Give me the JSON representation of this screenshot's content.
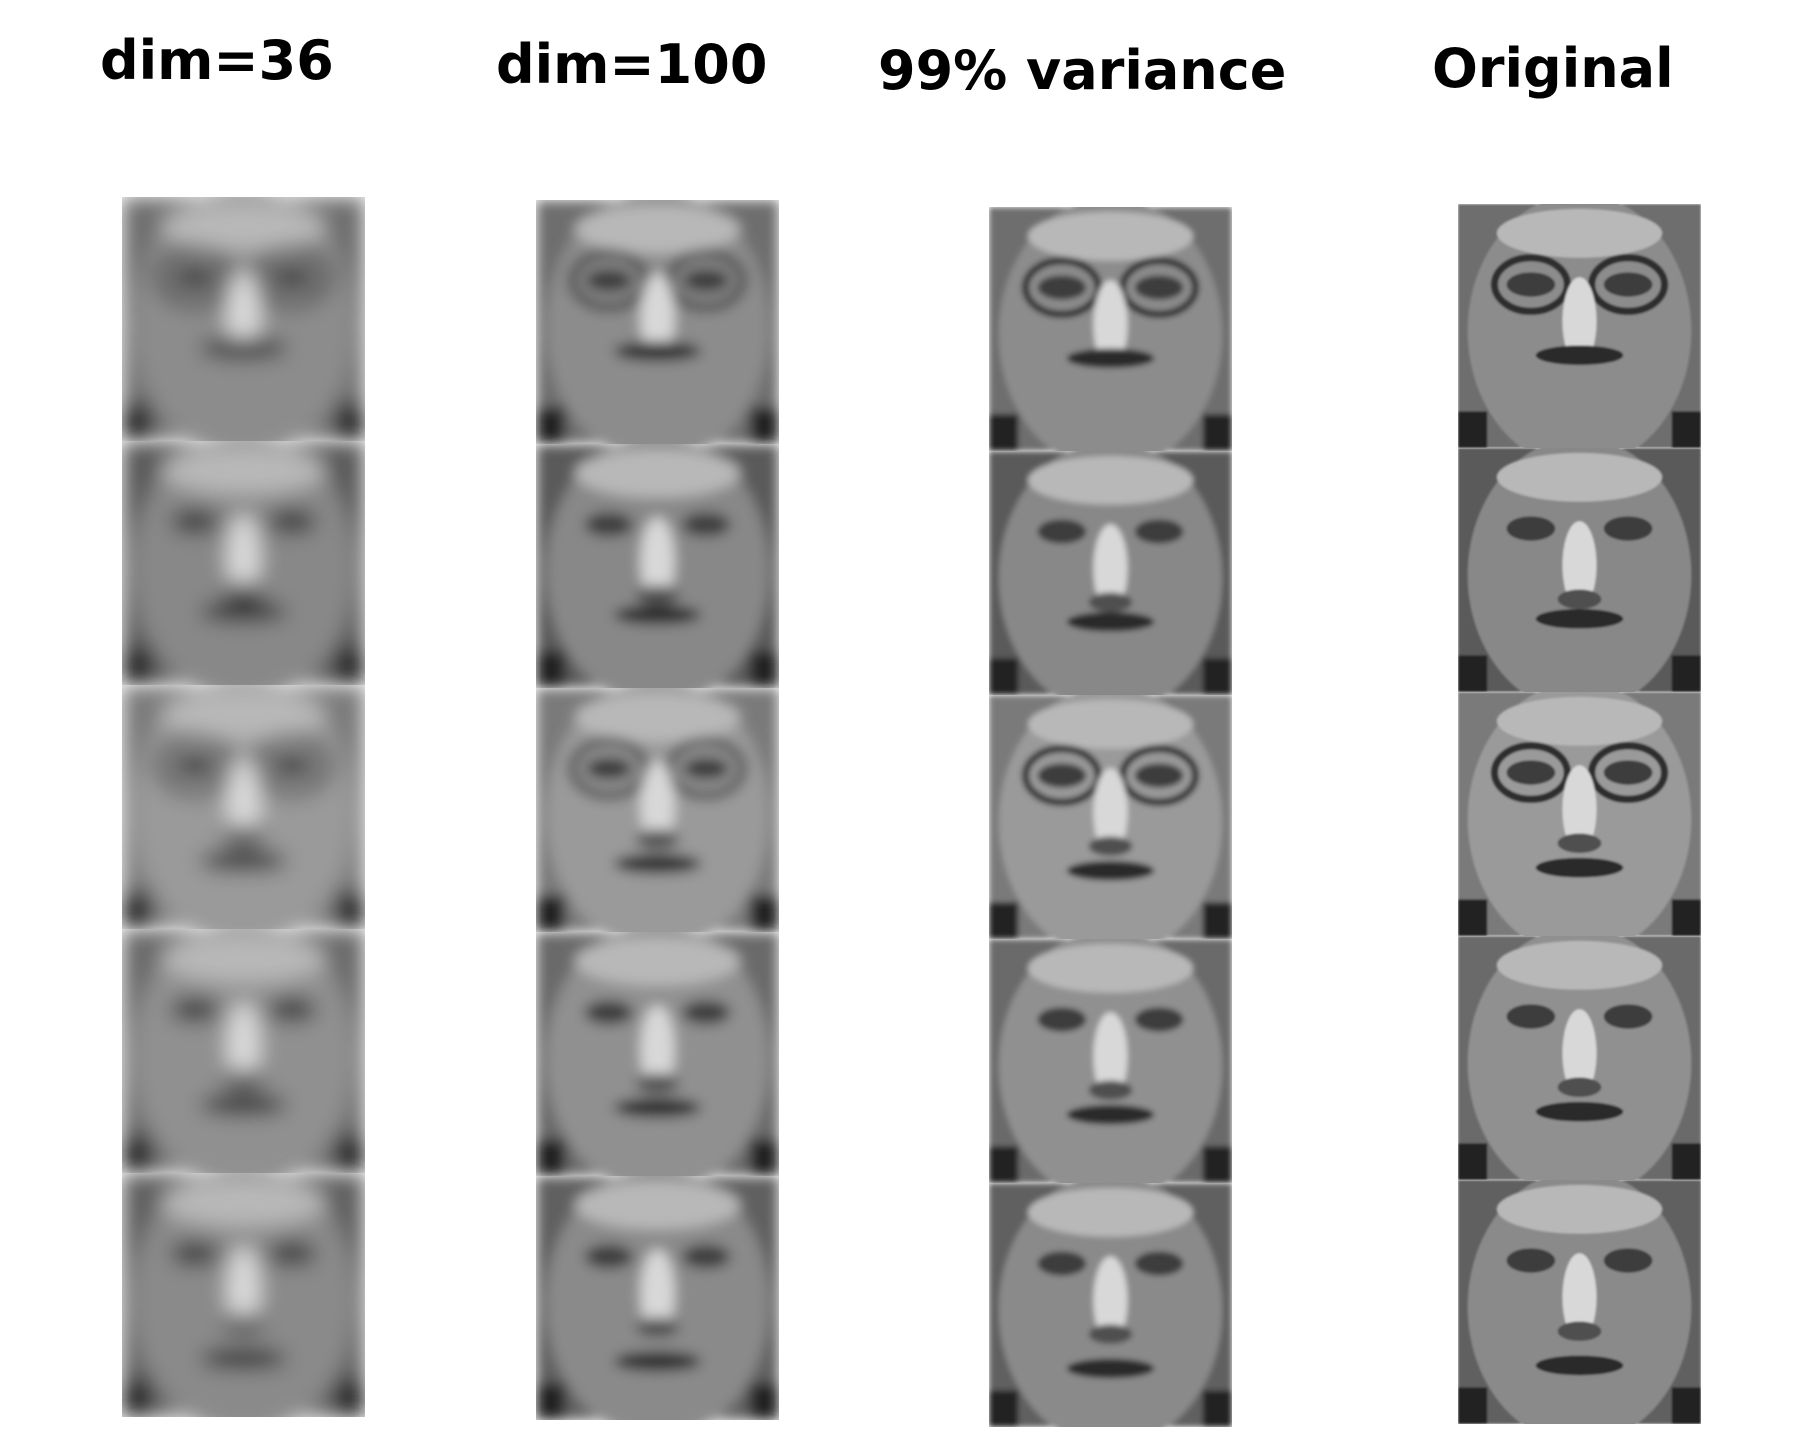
{
  "columns": [
    {
      "title": "dim=36",
      "blur": 4.2,
      "faces": 5
    },
    {
      "title": "dim=100",
      "blur": 2.6,
      "faces": 5
    },
    {
      "title": "99% variance",
      "blur": 1.2,
      "faces": 5
    },
    {
      "title": "Original",
      "blur": 0.4,
      "faces": 5
    }
  ]
}
